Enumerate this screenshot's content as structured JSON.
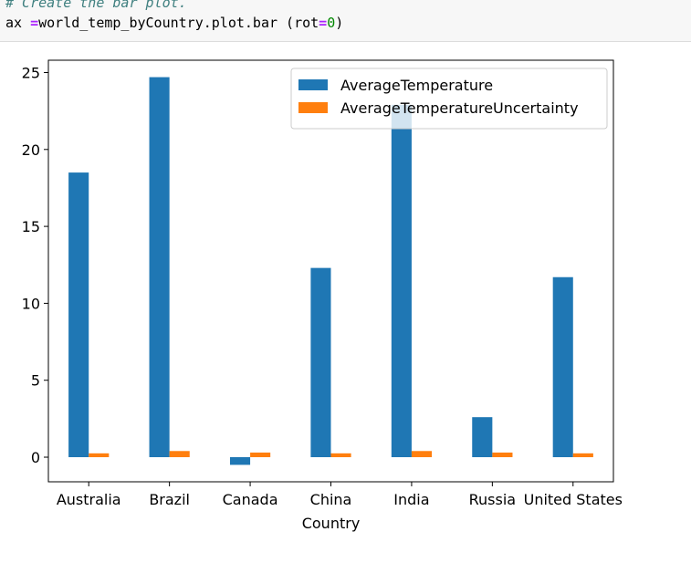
{
  "code": {
    "comment": "# Create the bar plot.",
    "var": "ax ",
    "assign": "=",
    "expr": "world_temp_byCountry.plot.bar (rot",
    "eq": "=",
    "num": "0",
    "close": ")"
  },
  "chart_data": {
    "type": "bar",
    "xlabel": "Country",
    "ylabel": "",
    "ylim": [
      -1.6,
      25.8
    ],
    "yticks": [
      0,
      5,
      10,
      15,
      20,
      25
    ],
    "grid": false,
    "legend_position": "top-right",
    "categories": [
      "Australia",
      "Brazil",
      "Canada",
      "China",
      "India",
      "Russia",
      "United States"
    ],
    "series": [
      {
        "name": "AverageTemperature",
        "color": "#1f77b4",
        "values": [
          18.5,
          24.7,
          -0.5,
          12.3,
          22.9,
          2.6,
          11.7
        ]
      },
      {
        "name": "AverageTemperatureUncertainty",
        "color": "#ff7f0e",
        "values": [
          0.25,
          0.4,
          0.3,
          0.25,
          0.4,
          0.3,
          0.25
        ]
      }
    ]
  }
}
